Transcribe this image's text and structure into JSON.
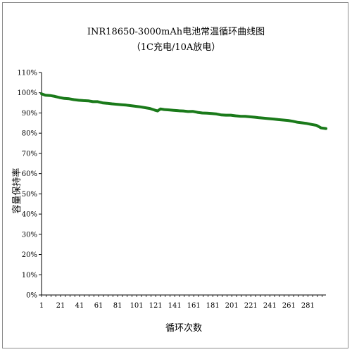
{
  "chart_data": {
    "type": "line",
    "title": "INR18650-3000mAh电池常温循环曲线图",
    "subtitle": "（1C充电/10A放电）",
    "xlabel": "循环次数",
    "ylabel": "容量保持率",
    "xlim": [
      1,
      300
    ],
    "ylim": [
      0,
      110
    ],
    "x_ticks": [
      "1",
      "21",
      "41",
      "61",
      "81",
      "101",
      "121",
      "141",
      "161",
      "181",
      "201",
      "221",
      "241",
      "261",
      "281"
    ],
    "y_ticks": [
      "0%",
      "10%",
      "20%",
      "30%",
      "40%",
      "50%",
      "60%",
      "70%",
      "80%",
      "90%",
      "100%",
      "110%"
    ],
    "y_tick_values": [
      0,
      10,
      20,
      30,
      40,
      50,
      60,
      70,
      80,
      90,
      100,
      110
    ],
    "grid": false,
    "series": [
      {
        "color": "#1a7a1a",
        "x": [
          1,
          5,
          10,
          15,
          20,
          25,
          30,
          35,
          40,
          45,
          50,
          55,
          60,
          65,
          70,
          75,
          80,
          85,
          90,
          95,
          100,
          105,
          110,
          115,
          120,
          123,
          126,
          130,
          135,
          140,
          145,
          150,
          155,
          160,
          165,
          170,
          175,
          180,
          185,
          190,
          195,
          200,
          205,
          210,
          215,
          220,
          225,
          230,
          235,
          240,
          245,
          250,
          255,
          260,
          265,
          270,
          275,
          280,
          285,
          290,
          295,
          300
        ],
        "values": [
          99.5,
          98.8,
          98.6,
          98.2,
          97.6,
          97.2,
          97.0,
          96.6,
          96.3,
          96.1,
          96.0,
          95.6,
          95.6,
          95.0,
          94.8,
          94.5,
          94.3,
          94.1,
          93.9,
          93.6,
          93.3,
          93.0,
          92.6,
          92.2,
          91.4,
          91.0,
          92.0,
          91.7,
          91.5,
          91.3,
          91.1,
          91.0,
          90.7,
          90.8,
          90.3,
          90.0,
          89.9,
          89.7,
          89.5,
          89.0,
          88.9,
          88.9,
          88.6,
          88.4,
          88.3,
          88.1,
          87.9,
          87.6,
          87.4,
          87.2,
          87.0,
          86.7,
          86.5,
          86.3,
          85.9,
          85.4,
          85.1,
          84.8,
          84.3,
          83.9,
          82.6,
          82.3
        ]
      }
    ]
  }
}
